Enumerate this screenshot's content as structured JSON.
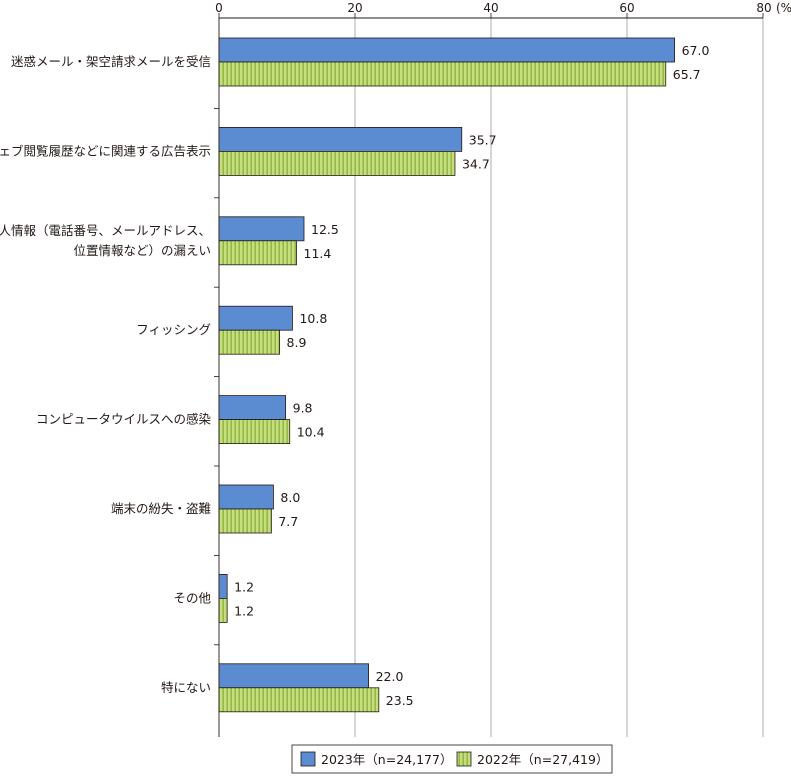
{
  "chart_data": {
    "type": "bar",
    "orientation": "horizontal",
    "title": "",
    "xlabel": "",
    "ylabel": "",
    "unit_label": "(%)",
    "xlim": [
      0,
      80
    ],
    "xticks": [
      "0",
      "20",
      "40",
      "60",
      "80"
    ],
    "grid": true,
    "legend_position": "bottom",
    "categories": [
      [
        "迷惑メール・架空請求メールを受信"
      ],
      [
        "ウェブ閲覧履歴などに関連する広告表示"
      ],
      [
        "個人情報（電話番号、メールアドレス、",
        "位置情報など）の漏えい"
      ],
      [
        "フィッシング"
      ],
      [
        "コンピュータウイルスへの感染"
      ],
      [
        "端末の紛失・盗難"
      ],
      [
        "その他"
      ],
      [
        "特にない"
      ]
    ],
    "series": [
      {
        "name": "2023年（n=24,177）",
        "color": "#5b8bd0",
        "pattern": "solid",
        "values": [
          67.0,
          35.7,
          12.5,
          10.8,
          9.8,
          8.0,
          1.2,
          22.0
        ],
        "labels": [
          "67.0",
          "35.7",
          "12.5",
          "10.8",
          "9.8",
          "8.0",
          "1.2",
          "22.0"
        ]
      },
      {
        "name": "2022年（n=27,419）",
        "color": "#c5e07a",
        "pattern": "vertical-stripes",
        "values": [
          65.7,
          34.7,
          11.4,
          8.9,
          10.4,
          7.7,
          1.2,
          23.5
        ],
        "labels": [
          "65.7",
          "34.7",
          "11.4",
          "8.9",
          "10.4",
          "7.7",
          "1.2",
          "23.5"
        ]
      }
    ]
  }
}
